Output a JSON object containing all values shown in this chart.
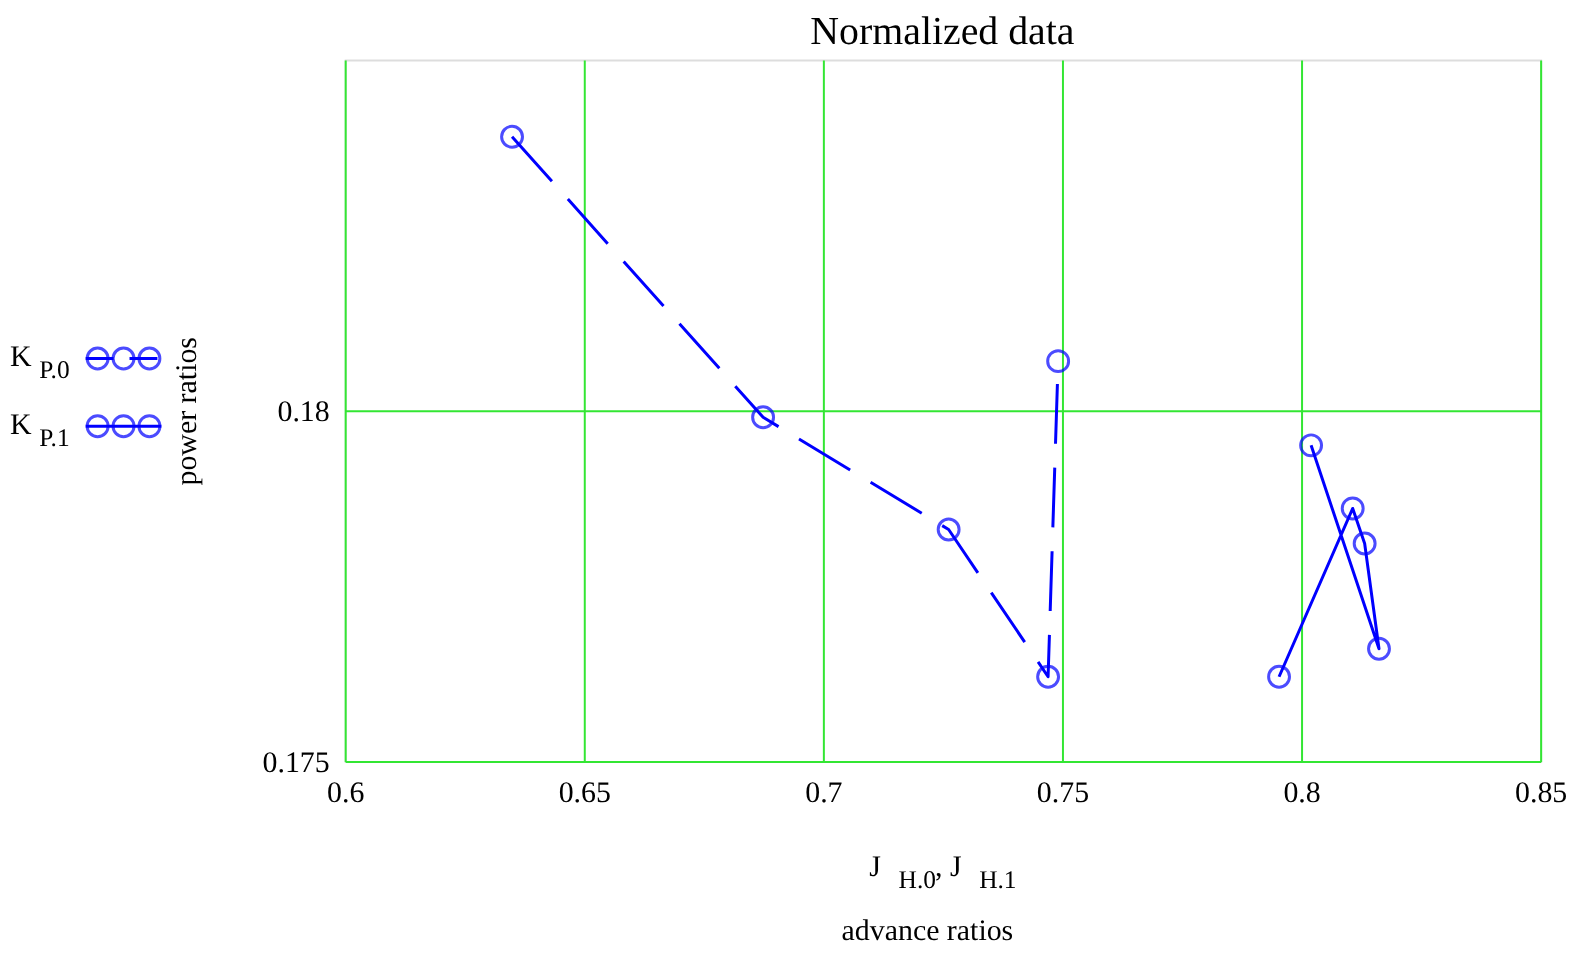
{
  "chart_data": {
    "type": "line",
    "title": "Normalized data",
    "xlabel": "J$_{H.0}$, J$_{H.1}$\nadvance ratios",
    "ylabel": "power ratios",
    "xlim": [
      0.6,
      0.85
    ],
    "xticks": [
      0.6,
      0.65,
      0.7,
      0.75,
      0.8,
      0.85
    ],
    "ylim": [
      0.175,
      0.185
    ],
    "yticks": [
      0.175,
      0.18
    ],
    "grid": true,
    "legend": "left",
    "marker": "circle",
    "series": [
      {
        "name": "K$_{P.0}$",
        "color": "#0000ff",
        "line_style": "dashed",
        "x": [
          0.635,
          0.6875,
          0.7263,
          0.7471,
          0.7492
        ],
        "values": [
          0.1839,
          0.1799,
          0.1783,
          0.1762,
          0.1807
        ]
      },
      {
        "name": "K$_{P.1}$",
        "color": "#0000ff",
        "line_style": "solid",
        "x": [
          0.7954,
          0.8108,
          0.8133,
          0.8163,
          0.8021
        ],
        "values": [
          0.1762,
          0.1786,
          0.1781,
          0.1766,
          0.1795
        ]
      }
    ]
  }
}
